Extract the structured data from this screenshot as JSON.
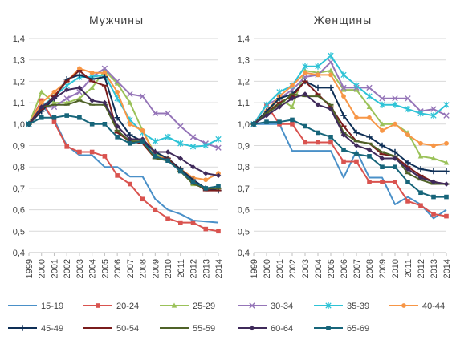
{
  "chart_data": {
    "type": "line",
    "x": [
      "1999",
      "2000",
      "2001",
      "2002",
      "2003",
      "2004",
      "2005",
      "2006",
      "2007",
      "2008",
      "2009",
      "2010",
      "2011",
      "2012",
      "2013",
      "2014"
    ],
    "ylim": [
      0.4,
      1.4
    ],
    "yticks": [
      "0,4",
      "0,5",
      "0,6",
      "0,7",
      "0,8",
      "0,9",
      "1,0",
      "1,1",
      "1,2",
      "1,3",
      "1,4"
    ],
    "grid": true,
    "legend_position": "bottom",
    "colors": {
      "15-19": "#4a90c8",
      "20-24": "#d9534f",
      "25-29": "#9bc25a",
      "30-34": "#9575b8",
      "35-39": "#2ec3d6",
      "40-44": "#f79646",
      "45-49": "#0e2f56",
      "50-54": "#7a1c1c",
      "55-59": "#4f6228",
      "60-64": "#3f2a5a",
      "65-69": "#17657a"
    },
    "markers": {
      "15-19": "none",
      "20-24": "square",
      "25-29": "triangle",
      "30-34": "x",
      "35-39": "star",
      "40-44": "circle",
      "45-49": "plus",
      "50-54": "dash",
      "55-59": "dash",
      "60-64": "diamond",
      "65-69": "square"
    },
    "legend": [
      "15-19",
      "20-24",
      "25-29",
      "30-34",
      "35-39",
      "40-44",
      "45-49",
      "50-54",
      "55-59",
      "60-64",
      "65-69"
    ],
    "panels": [
      {
        "title": "Мужчины",
        "series": [
          {
            "name": "15-19",
            "values": [
              1.0,
              1.09,
              1.02,
              0.9,
              0.855,
              0.855,
              0.8,
              0.8,
              0.755,
              0.755,
              0.65,
              0.6,
              0.58,
              0.55,
              0.545,
              0.54
            ]
          },
          {
            "name": "20-24",
            "values": [
              1.0,
              1.11,
              1.01,
              0.895,
              0.87,
              0.87,
              0.85,
              0.76,
              0.72,
              0.65,
              0.6,
              0.56,
              0.54,
              0.54,
              0.51,
              0.5
            ]
          },
          {
            "name": "25-29",
            "values": [
              1.0,
              1.15,
              1.1,
              1.1,
              1.12,
              1.17,
              1.25,
              1.19,
              1.1,
              0.97,
              0.86,
              0.84,
              0.78,
              0.72,
              0.7,
              0.7
            ]
          },
          {
            "name": "30-34",
            "values": [
              1.0,
              1.08,
              1.08,
              1.12,
              1.15,
              1.22,
              1.26,
              1.2,
              1.14,
              1.13,
              1.05,
              1.05,
              0.99,
              0.94,
              0.91,
              0.89
            ]
          },
          {
            "name": "35-39",
            "values": [
              1.0,
              1.08,
              1.13,
              1.18,
              1.22,
              1.22,
              1.23,
              1.12,
              1.02,
              0.96,
              0.92,
              0.94,
              0.91,
              0.895,
              0.9,
              0.93
            ]
          },
          {
            "name": "40-44",
            "values": [
              1.0,
              1.1,
              1.15,
              1.2,
              1.26,
              1.24,
              1.24,
              1.15,
              1.0,
              0.97,
              0.85,
              0.84,
              0.79,
              0.75,
              0.74,
              0.77
            ]
          },
          {
            "name": "45-49",
            "values": [
              1.0,
              1.06,
              1.12,
              1.21,
              1.23,
              1.21,
              1.22,
              1.03,
              0.95,
              0.92,
              0.87,
              0.84,
              0.79,
              0.74,
              0.7,
              0.69
            ]
          },
          {
            "name": "50-54",
            "values": [
              1.0,
              1.07,
              1.13,
              1.2,
              1.25,
              1.2,
              1.18,
              0.96,
              0.92,
              0.91,
              0.84,
              0.84,
              0.78,
              0.73,
              0.69,
              0.69
            ]
          },
          {
            "name": "55-59",
            "values": [
              1.0,
              1.08,
              1.09,
              1.09,
              1.11,
              1.09,
              1.09,
              0.97,
              0.92,
              0.92,
              0.84,
              0.83,
              0.78,
              0.72,
              0.7,
              0.7
            ]
          },
          {
            "name": "60-64",
            "values": [
              1.0,
              1.08,
              1.12,
              1.16,
              1.17,
              1.11,
              1.1,
              0.99,
              0.93,
              0.93,
              0.87,
              0.87,
              0.84,
              0.8,
              0.77,
              0.76
            ]
          },
          {
            "name": "65-69",
            "values": [
              1.0,
              1.03,
              1.03,
              1.04,
              1.03,
              1.0,
              1.0,
              0.94,
              0.91,
              0.92,
              0.85,
              0.83,
              0.78,
              0.73,
              0.7,
              0.71
            ]
          }
        ]
      },
      {
        "title": "Женщины",
        "series": [
          {
            "name": "15-19",
            "values": [
              1.0,
              1.0,
              1.0,
              0.875,
              0.875,
              0.875,
              0.875,
              0.75,
              0.875,
              0.75,
              0.75,
              0.625,
              0.66,
              0.625,
              0.56,
              0.6
            ]
          },
          {
            "name": "20-24",
            "values": [
              1.0,
              1.09,
              1.0,
              1.0,
              0.915,
              0.915,
              0.915,
              0.825,
              0.825,
              0.73,
              0.73,
              0.73,
              0.64,
              0.62,
              0.58,
              0.57
            ]
          },
          {
            "name": "25-29",
            "values": [
              1.0,
              1.05,
              1.12,
              1.08,
              1.25,
              1.24,
              1.25,
              1.16,
              1.16,
              1.08,
              1.0,
              1.0,
              0.96,
              0.85,
              0.84,
              0.82
            ]
          },
          {
            "name": "30-34",
            "values": [
              1.0,
              1.09,
              1.12,
              1.16,
              1.22,
              1.23,
              1.29,
              1.17,
              1.17,
              1.17,
              1.12,
              1.12,
              1.12,
              1.06,
              1.07,
              1.04
            ]
          },
          {
            "name": "35-39",
            "values": [
              1.0,
              1.09,
              1.15,
              1.18,
              1.27,
              1.27,
              1.32,
              1.23,
              1.18,
              1.13,
              1.09,
              1.09,
              1.07,
              1.05,
              1.04,
              1.09
            ]
          },
          {
            "name": "40-44",
            "values": [
              1.0,
              1.06,
              1.13,
              1.18,
              1.24,
              1.23,
              1.23,
              1.13,
              1.03,
              1.03,
              0.97,
              1.0,
              0.95,
              0.91,
              0.9,
              0.91
            ]
          },
          {
            "name": "45-49",
            "values": [
              1.0,
              1.06,
              1.12,
              1.14,
              1.2,
              1.17,
              1.17,
              1.04,
              0.96,
              0.94,
              0.9,
              0.87,
              0.82,
              0.79,
              0.78,
              0.78
            ]
          },
          {
            "name": "50-54",
            "values": [
              1.0,
              1.05,
              1.1,
              1.13,
              1.2,
              1.14,
              1.08,
              0.99,
              0.92,
              0.91,
              0.86,
              0.85,
              0.8,
              0.76,
              0.73,
              0.72
            ]
          },
          {
            "name": "55-59",
            "values": [
              1.0,
              1.05,
              1.09,
              1.14,
              1.13,
              1.13,
              1.09,
              0.96,
              0.92,
              0.91,
              0.87,
              0.85,
              0.77,
              0.74,
              0.72,
              0.72
            ]
          },
          {
            "name": "60-64",
            "values": [
              1.0,
              1.04,
              1.08,
              1.12,
              1.14,
              1.09,
              1.07,
              0.95,
              0.9,
              0.88,
              0.84,
              0.84,
              0.79,
              0.75,
              0.73,
              0.72
            ]
          },
          {
            "name": "65-69",
            "values": [
              1.0,
              1.01,
              1.01,
              1.02,
              0.99,
              0.96,
              0.94,
              0.88,
              0.86,
              0.85,
              0.8,
              0.8,
              0.73,
              0.68,
              0.66,
              0.66
            ]
          }
        ]
      }
    ]
  }
}
